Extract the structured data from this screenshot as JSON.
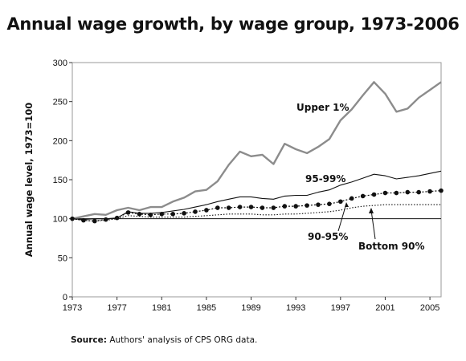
{
  "chart_data": {
    "type": "line",
    "title": "Annual wage growth, by wage group, 1973-2006",
    "ylabel": "Annual wage level, 1973=100",
    "xlabel": "",
    "x": [
      1973,
      1974,
      1975,
      1976,
      1977,
      1978,
      1979,
      1980,
      1981,
      1982,
      1983,
      1984,
      1985,
      1986,
      1987,
      1988,
      1989,
      1990,
      1991,
      1992,
      1993,
      1994,
      1995,
      1996,
      1997,
      1998,
      1999,
      2000,
      2001,
      2002,
      2003,
      2004,
      2005,
      2006
    ],
    "xlim": [
      1973,
      2006
    ],
    "ylim": [
      0,
      300
    ],
    "xticks": [
      "1973",
      "1977",
      "1981",
      "1985",
      "1989",
      "1993",
      "1997",
      "2001",
      "2005"
    ],
    "yticks": [
      "0",
      "50",
      "100",
      "150",
      "200",
      "250",
      "300"
    ],
    "grid": false,
    "series": [
      {
        "name": "Upper 1%",
        "color": "#8c8c8c",
        "style": "solid-thick",
        "values": [
          100,
          103,
          106,
          105,
          111,
          114,
          111,
          115,
          115,
          122,
          127,
          135,
          137,
          148,
          169,
          186,
          180,
          182,
          170,
          196,
          189,
          184,
          192,
          202,
          226,
          240,
          258,
          275,
          260,
          237,
          241,
          255,
          265,
          275
        ]
      },
      {
        "name": "95-99%",
        "color": "#111111",
        "style": "solid-thin",
        "values": [
          100,
          99,
          100,
          100,
          101,
          109,
          107,
          107,
          108,
          110,
          112,
          115,
          118,
          122,
          125,
          128,
          128,
          126,
          125,
          129,
          130,
          130,
          134,
          137,
          143,
          147,
          152,
          157,
          155,
          151,
          153,
          155,
          158,
          161
        ]
      },
      {
        "name": "90-95%",
        "color": "#111111",
        "style": "dotted-markers",
        "values": [
          100,
          98,
          97,
          99,
          101,
          108,
          106,
          105,
          106,
          106,
          107,
          109,
          111,
          114,
          114,
          115,
          115,
          114,
          114,
          116,
          116,
          117,
          118,
          119,
          122,
          126,
          129,
          131,
          133,
          133,
          134,
          134,
          135,
          136
        ]
      },
      {
        "name": "Bottom 90%",
        "color": "#111111",
        "style": "dotted",
        "values": [
          100,
          98,
          97,
          98,
          100,
          104,
          103,
          102,
          102,
          102,
          102,
          103,
          104,
          105,
          106,
          106,
          106,
          105,
          105,
          106,
          106,
          107,
          108,
          109,
          111,
          114,
          116,
          117,
          118,
          118,
          118,
          118,
          118,
          118
        ]
      }
    ],
    "reference_line": 100
  },
  "source": {
    "label": "Source:",
    "text": "Authors' analysis of CPS ORG data."
  }
}
